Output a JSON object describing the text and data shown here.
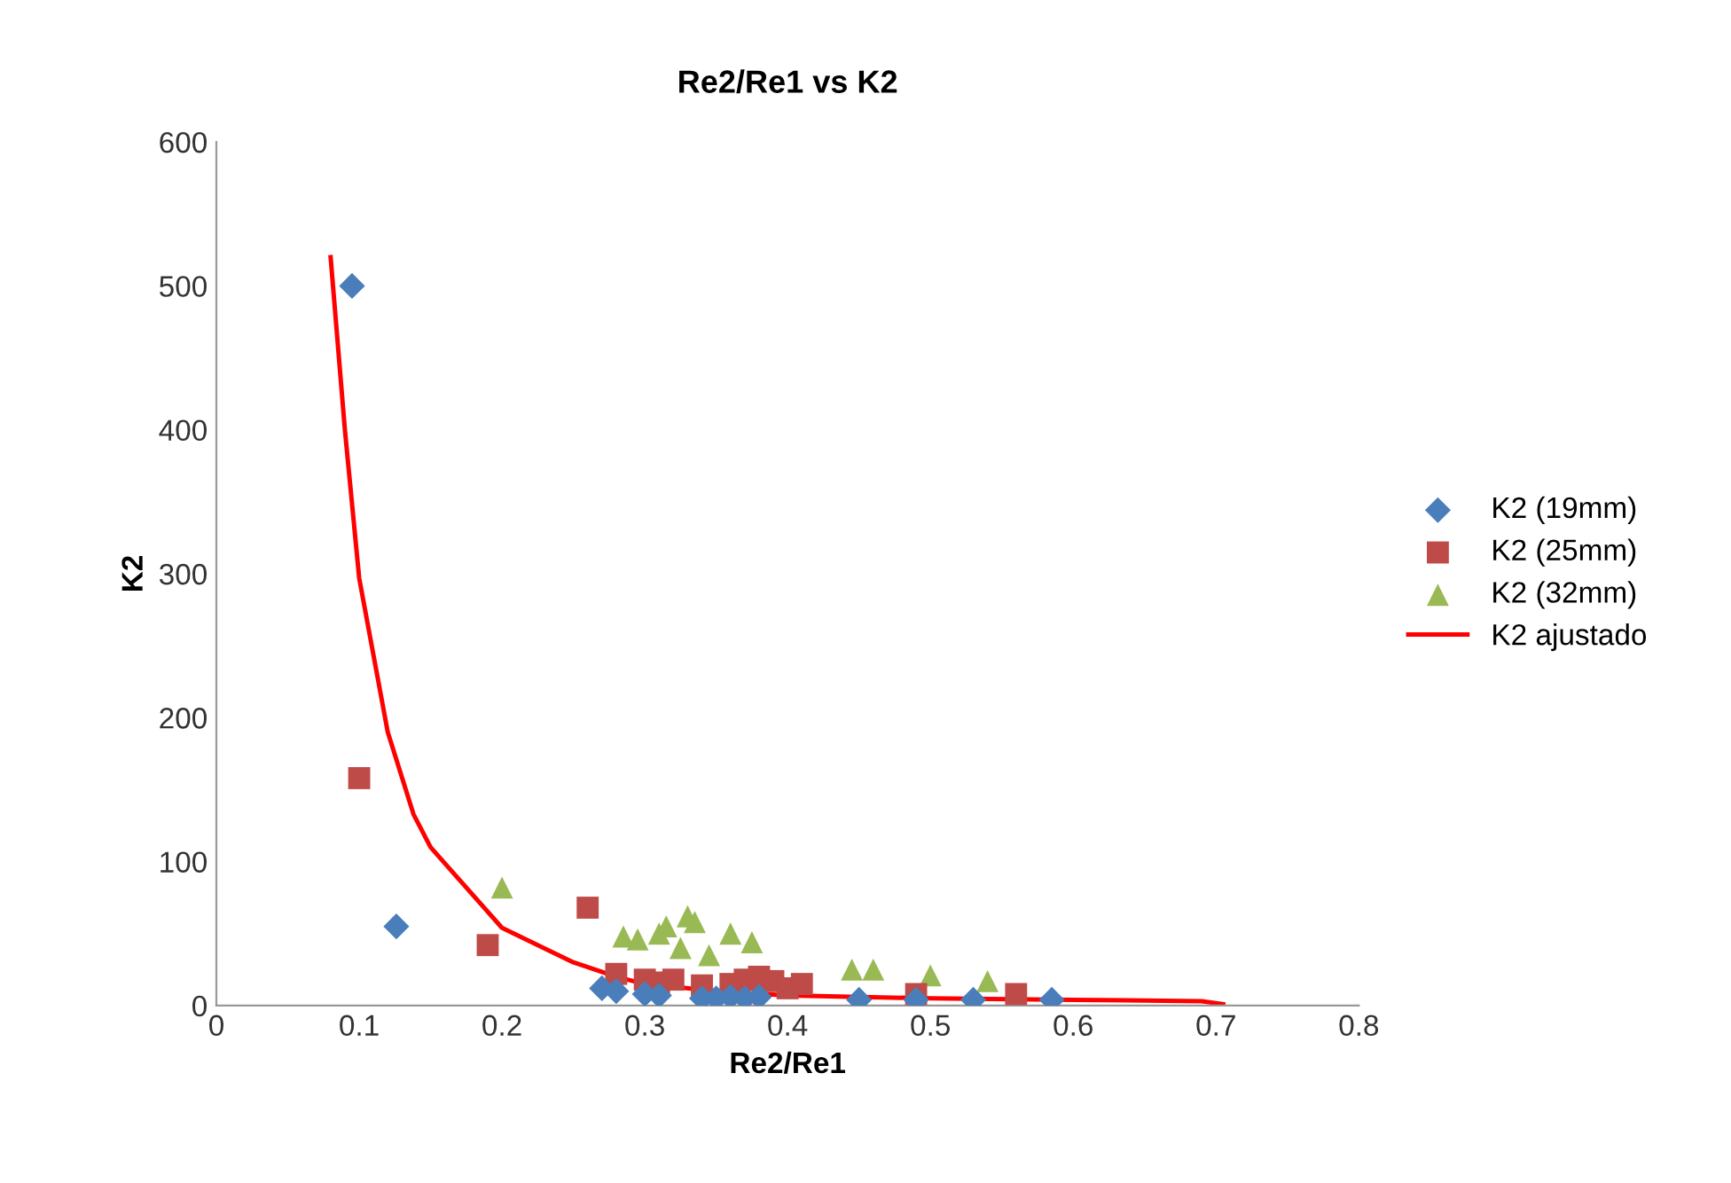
{
  "chart_data": {
    "type": "scatter",
    "title": "Re2/Re1 vs K2",
    "xlabel": "Re2/Re1",
    "ylabel": "K2",
    "xlim": [
      0,
      0.8
    ],
    "xticks": [
      0,
      0.1,
      0.2,
      0.3,
      0.4,
      0.5,
      0.6,
      0.7,
      0.8
    ],
    "ylim": [
      0,
      600
    ],
    "yticks": [
      0,
      100,
      200,
      300,
      400,
      500,
      600
    ],
    "grid": false,
    "legend": "right",
    "series": [
      {
        "name": "K2 (19mm)",
        "color": "#4a7ebb",
        "marker": "diamond",
        "x": [
          0.095,
          0.126,
          0.27,
          0.28,
          0.3,
          0.31,
          0.34,
          0.35,
          0.36,
          0.37,
          0.38,
          0.45,
          0.49,
          0.53,
          0.585
        ],
        "values": [
          500,
          55,
          12,
          10,
          8,
          7,
          5,
          5,
          6,
          5,
          6,
          4,
          4,
          4,
          4
        ]
      },
      {
        "name": "K2 (25mm)",
        "color": "#be4b48",
        "marker": "square",
        "x": [
          0.1,
          0.19,
          0.26,
          0.28,
          0.3,
          0.31,
          0.32,
          0.34,
          0.36,
          0.37,
          0.38,
          0.39,
          0.4,
          0.41,
          0.49,
          0.56
        ],
        "values": [
          158,
          42,
          68,
          22,
          18,
          16,
          18,
          14,
          15,
          18,
          20,
          17,
          12,
          15,
          8,
          8
        ]
      },
      {
        "name": "K2 (32mm)",
        "color": "#98b954",
        "marker": "triangle",
        "x": [
          0.2,
          0.285,
          0.295,
          0.31,
          0.315,
          0.325,
          0.33,
          0.335,
          0.345,
          0.36,
          0.375,
          0.445,
          0.46,
          0.5,
          0.54
        ],
        "values": [
          82,
          48,
          46,
          50,
          55,
          40,
          62,
          58,
          35,
          50,
          44,
          25,
          25,
          21,
          17
        ]
      },
      {
        "name": "K2 ajustado",
        "type": "line",
        "color": "#ff0000",
        "marker": "none",
        "x": [
          0.08,
          0.09,
          0.1,
          0.12,
          0.138,
          0.15,
          0.2,
          0.25,
          0.28,
          0.3,
          0.35,
          0.4,
          0.5,
          0.6,
          0.69,
          0.705
        ],
        "values": [
          520,
          400,
          297,
          190,
          133,
          110,
          54,
          30,
          20,
          15,
          10,
          7,
          5,
          4,
          3,
          1
        ]
      }
    ]
  }
}
